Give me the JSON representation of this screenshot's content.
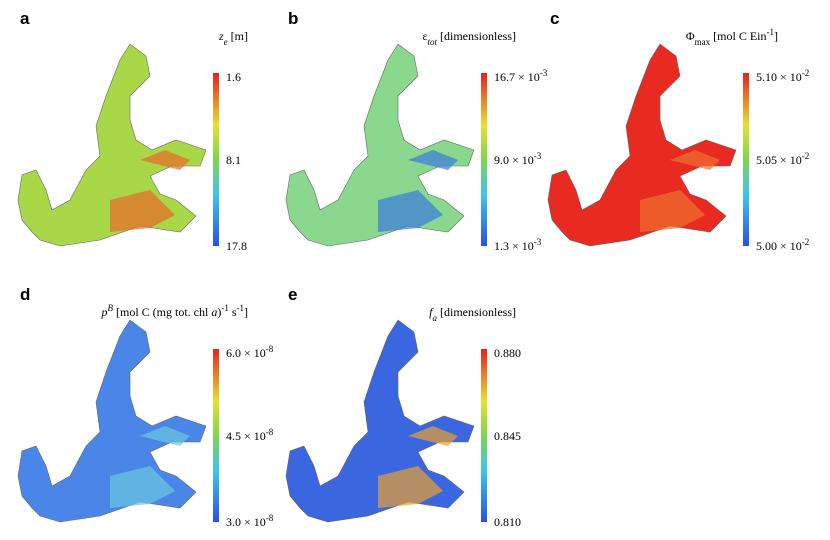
{
  "panels": [
    {
      "letter": "a",
      "title": [
        "z",
        "e",
        " [m]"
      ],
      "ticks": [
        [
          "1.6"
        ],
        [
          "8.1"
        ],
        [
          "17.8"
        ]
      ]
    },
    {
      "letter": "b",
      "title": [
        "ε",
        "tot",
        " [dimensionless]"
      ],
      "ticks": [
        [
          "16.7 × 10",
          "-3"
        ],
        [
          "9.0 × 10",
          "-3"
        ],
        [
          "1.3 × 10",
          "-3"
        ]
      ]
    },
    {
      "letter": "c",
      "title": [
        "Φ",
        "max",
        " [mol C Ein",
        "-1",
        "]"
      ],
      "ticks": [
        [
          "5.10 × 10",
          "-2"
        ],
        [
          "5.05 × 10",
          "-2"
        ],
        [
          "5.00 × 10",
          "-2"
        ]
      ]
    },
    {
      "letter": "d",
      "title": [
        "p",
        "B",
        " [mol C (mg tot. chl ",
        "a",
        ")",
        "-1",
        " s",
        "-1",
        "]"
      ],
      "ticks": [
        [
          "6.0 × 10",
          "-8"
        ],
        [
          "4.5 × 10",
          "-8"
        ],
        [
          "3.0 × 10",
          "-8"
        ]
      ]
    },
    {
      "letter": "e",
      "title": [
        "f",
        "a",
        " [dimensionless]"
      ],
      "ticks": [
        [
          "0.880"
        ],
        [
          "0.845"
        ],
        [
          "0.810"
        ]
      ]
    }
  ]
}
